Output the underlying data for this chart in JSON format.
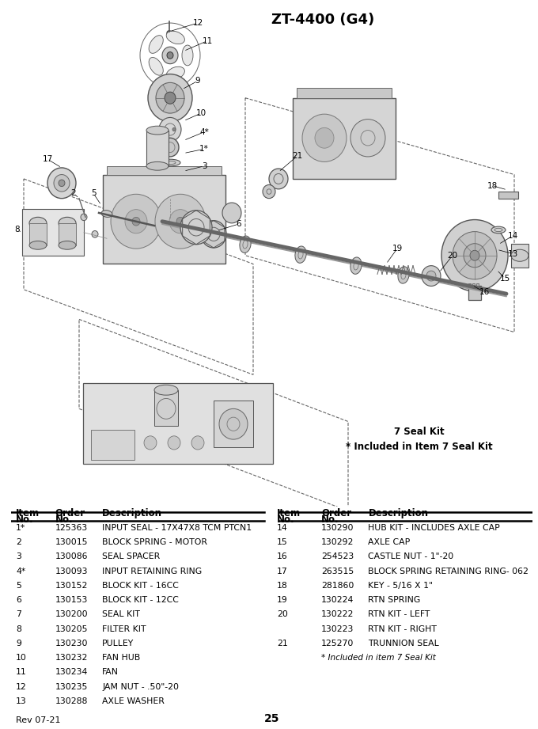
{
  "title": "ZT-4400 (G4)",
  "seal_kit_note1": "7 Seal Kit",
  "seal_kit_note2": "* Included in Item 7 Seal Kit",
  "left_rows": [
    [
      "1*",
      "125363",
      "INPUT SEAL - 17X47X8 TCM PTCN1"
    ],
    [
      "2",
      "130015",
      "BLOCK SPRING - MOTOR"
    ],
    [
      "3",
      "130086",
      "SEAL SPACER"
    ],
    [
      "4*",
      "130093",
      "INPUT RETAINING RING"
    ],
    [
      "5",
      "130152",
      "BLOCK KIT - 16CC"
    ],
    [
      "6",
      "130153",
      "BLOCK KIT - 12CC"
    ],
    [
      "7",
      "130200",
      "SEAL KIT"
    ],
    [
      "8",
      "130205",
      "FILTER KIT"
    ],
    [
      "9",
      "130230",
      "PULLEY"
    ],
    [
      "10",
      "130232",
      "FAN HUB"
    ],
    [
      "11",
      "130234",
      "FAN"
    ],
    [
      "12",
      "130235",
      "JAM NUT - .50\"-20"
    ],
    [
      "13",
      "130288",
      "AXLE WASHER"
    ]
  ],
  "right_rows": [
    [
      "14",
      "130290",
      "HUB KIT - INCLUDES AXLE CAP"
    ],
    [
      "15",
      "130292",
      "AXLE CAP"
    ],
    [
      "16",
      "254523",
      "CASTLE NUT - 1\"-20"
    ],
    [
      "17",
      "263515",
      "BLOCK SPRING RETAINING RING- 062"
    ],
    [
      "18",
      "281860",
      "KEY - 5/16 X 1\""
    ],
    [
      "19",
      "130224",
      "RTN SPRING"
    ],
    [
      "20",
      "130222",
      "RTN KIT - LEFT"
    ],
    [
      "",
      "130223",
      "RTN KIT - RIGHT"
    ],
    [
      "21",
      "125270",
      "TRUNNION SEAL"
    ]
  ],
  "footnote_right": "* Included in item 7 Seal Kit",
  "rev": "Rev 07-21",
  "page": "25",
  "bg_color": "#ffffff",
  "text_color": "#000000"
}
